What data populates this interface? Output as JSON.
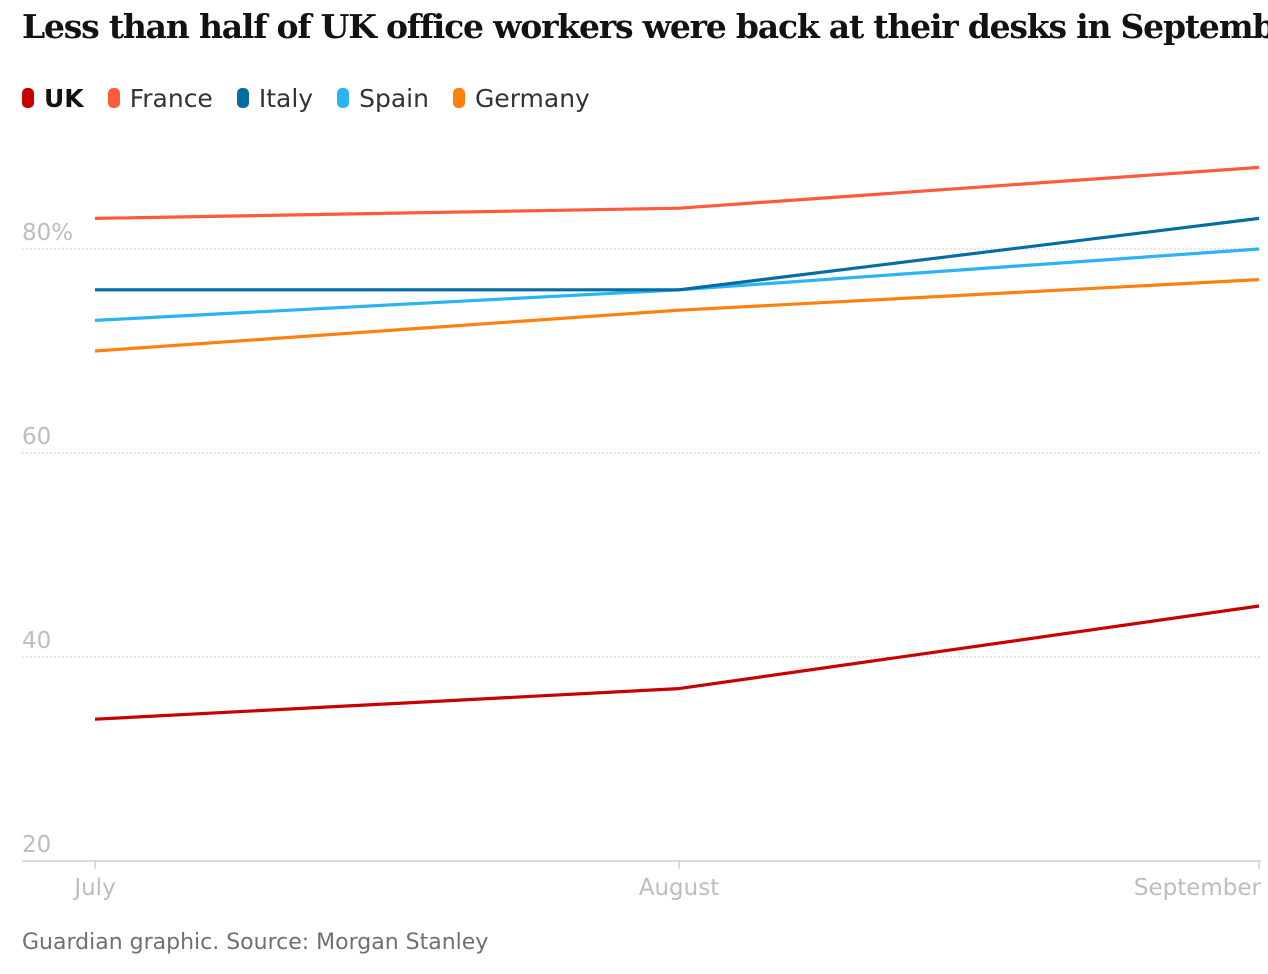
{
  "chart_data": {
    "type": "line",
    "title": "Less than half of UK office workers were back at their desks in September",
    "categories": [
      "July",
      "August",
      "September"
    ],
    "series": [
      {
        "name": "UK",
        "color": "#c70000",
        "emphasis": true,
        "values": [
          33.9,
          36.9,
          45.0
        ]
      },
      {
        "name": "France",
        "color": "#ff5b3a",
        "emphasis": false,
        "values": [
          83.0,
          84.0,
          88.0
        ]
      },
      {
        "name": "Italy",
        "color": "#056da1",
        "emphasis": false,
        "values": [
          76.0,
          76.0,
          83.0
        ]
      },
      {
        "name": "Spain",
        "color": "#2ab4f3",
        "emphasis": false,
        "values": [
          73.0,
          76.0,
          80.0
        ]
      },
      {
        "name": "Germany",
        "color": "#ff7f0f",
        "emphasis": false,
        "values": [
          70.0,
          74.0,
          77.0
        ]
      }
    ],
    "yticks": [
      {
        "value": 20,
        "label": "20"
      },
      {
        "value": 40,
        "label": "40"
      },
      {
        "value": 60,
        "label": "60"
      },
      {
        "value": 80,
        "label": "80%"
      }
    ],
    "ylim": [
      20,
      88
    ],
    "xlabel": "",
    "ylabel": "",
    "grid": true,
    "legend": "top-left"
  },
  "source": "Guardian graphic. Source: Morgan Stanley"
}
